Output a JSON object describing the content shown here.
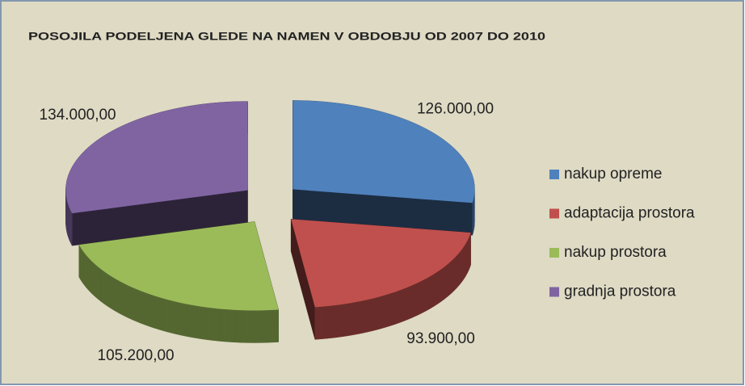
{
  "chart_data": {
    "type": "pie",
    "title": "POSOJILA PODELJENA GLEDE NA NAMEN V OBDOBJU OD 2007 DO 2010",
    "categories": [
      "nakup opreme",
      "adaptacija prostora",
      "nakup prostora",
      "gradnja prostora"
    ],
    "values": [
      126000,
      93900,
      105200,
      134000
    ],
    "value_labels": [
      "126.000,00",
      "93.900,00",
      "105.200,00",
      "134.000,00"
    ],
    "colors": [
      "#4f81bd",
      "#c0504d",
      "#9bbb59",
      "#8064a2"
    ],
    "legend": "right"
  }
}
